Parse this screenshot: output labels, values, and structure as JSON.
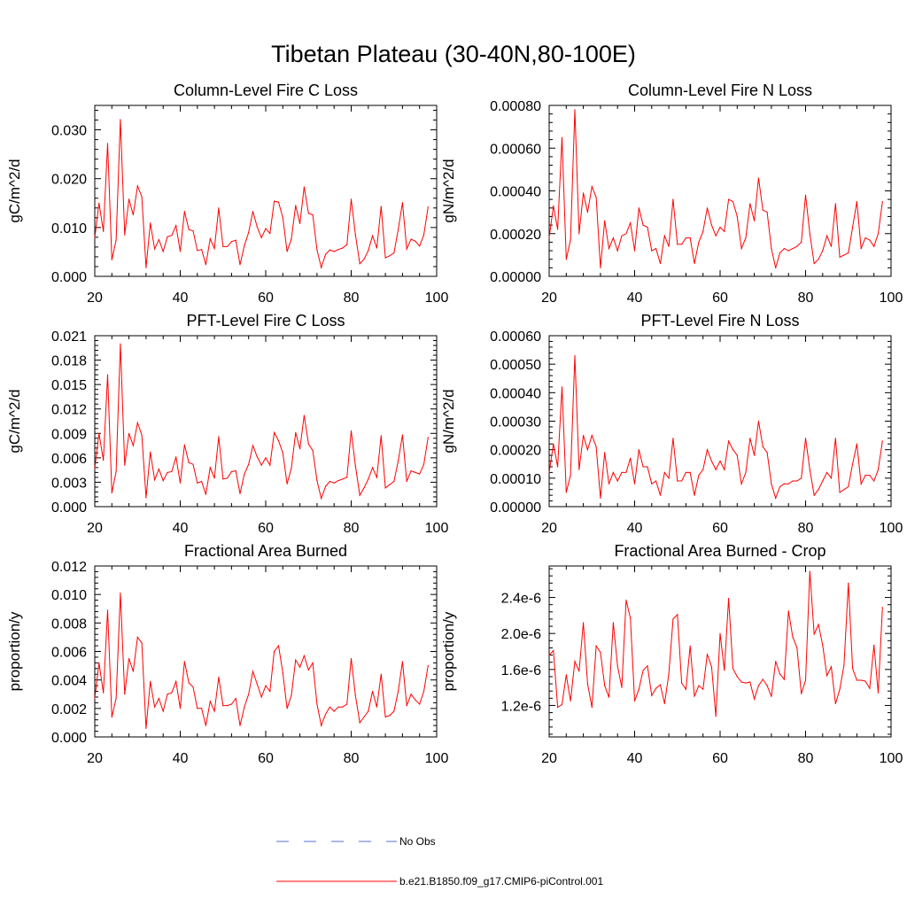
{
  "figure": {
    "title": "Tibetan Plateau (30-40N,80-100E)",
    "line_color": "#ff0000",
    "obs_color": "#5a6fd0"
  },
  "legend": {
    "entries": [
      {
        "label": "No Obs",
        "style": "dashed",
        "color": "#5a6fd0"
      },
      {
        "label": "b.e21.B1850.f09_g17.CMIP6-piControl.001",
        "style": "solid",
        "color": "#ff0000"
      }
    ]
  },
  "chart_data": [
    {
      "type": "line",
      "title": "Column-Level Fire C Loss",
      "ylabel": "gC/m^2/d",
      "xlim": [
        20,
        100
      ],
      "ylim": [
        0,
        0.035
      ],
      "xticks": [
        20,
        40,
        60,
        80,
        100
      ],
      "xtick_labels": [
        "20",
        "40",
        "60",
        "80",
        "100"
      ],
      "yticks": [
        0,
        0.01,
        0.02,
        0.03
      ],
      "ytick_labels": [
        "0.000",
        "0.010",
        "0.020",
        "0.030"
      ],
      "x": [
        20,
        21,
        22,
        23,
        24,
        25,
        26,
        27,
        28,
        29,
        30,
        31,
        32,
        33,
        34,
        35,
        36,
        37,
        38,
        39,
        40,
        41,
        42,
        43,
        44,
        45,
        46,
        47,
        48,
        49,
        50,
        51,
        52,
        53,
        54,
        55,
        56,
        57,
        58,
        59,
        60,
        61,
        62,
        63,
        64,
        65,
        66,
        67,
        68,
        69,
        70,
        71,
        72,
        73,
        74,
        75,
        76,
        77,
        78,
        79,
        80,
        81,
        82,
        83,
        84,
        85,
        86,
        87,
        88,
        89,
        90,
        91,
        92,
        93,
        94,
        95,
        96,
        97,
        98
      ],
      "values": [
        0.0079,
        0.015,
        0.0092,
        0.0272,
        0.0034,
        0.0074,
        0.0321,
        0.0085,
        0.0158,
        0.0126,
        0.0185,
        0.0163,
        0.0018,
        0.0109,
        0.0056,
        0.0075,
        0.0051,
        0.0081,
        0.0084,
        0.0104,
        0.0051,
        0.0133,
        0.0096,
        0.0093,
        0.0053,
        0.0055,
        0.0024,
        0.0077,
        0.0057,
        0.014,
        0.0061,
        0.0061,
        0.0071,
        0.0074,
        0.0024,
        0.0063,
        0.009,
        0.0133,
        0.0101,
        0.0079,
        0.0098,
        0.0088,
        0.0154,
        0.0152,
        0.012,
        0.0051,
        0.0076,
        0.0145,
        0.0108,
        0.0183,
        0.0129,
        0.0126,
        0.0054,
        0.0018,
        0.0045,
        0.0054,
        0.0051,
        0.0055,
        0.0058,
        0.0065,
        0.0158,
        0.0085,
        0.0026,
        0.0035,
        0.0053,
        0.0083,
        0.0058,
        0.0143,
        0.0038,
        0.0042,
        0.0048,
        0.0096,
        0.0151,
        0.0056,
        0.0076,
        0.0072,
        0.0062,
        0.0085,
        0.0142
      ]
    },
    {
      "type": "line",
      "title": "Column-Level Fire N Loss",
      "ylabel": "gN/m^2/d",
      "xlim": [
        20,
        100
      ],
      "ylim": [
        0,
        0.0008
      ],
      "xticks": [
        20,
        40,
        60,
        80,
        100
      ],
      "xtick_labels": [
        "20",
        "40",
        "60",
        "80",
        "100"
      ],
      "yticks": [
        0,
        0.0002,
        0.0004,
        0.0006,
        0.0008
      ],
      "ytick_labels": [
        "0.00000",
        "0.00020",
        "0.00040",
        "0.00060",
        "0.00080"
      ],
      "x": [
        20,
        21,
        22,
        23,
        24,
        25,
        26,
        27,
        28,
        29,
        30,
        31,
        32,
        33,
        34,
        35,
        36,
        37,
        38,
        39,
        40,
        41,
        42,
        43,
        44,
        45,
        46,
        47,
        48,
        49,
        50,
        51,
        52,
        53,
        54,
        55,
        56,
        57,
        58,
        59,
        60,
        61,
        62,
        63,
        64,
        65,
        66,
        67,
        68,
        69,
        70,
        71,
        72,
        73,
        74,
        75,
        76,
        77,
        78,
        79,
        80,
        81,
        82,
        83,
        84,
        85,
        86,
        87,
        88,
        89,
        90,
        91,
        92,
        93,
        94,
        95,
        96,
        97,
        98
      ],
      "values": [
        0.00018,
        0.00033,
        0.00022,
        0.00065,
        8e-05,
        0.00017,
        0.00078,
        0.0002,
        0.00039,
        0.0003,
        0.00042,
        0.00037,
        4e-05,
        0.00026,
        0.00013,
        0.00018,
        0.00012,
        0.00019,
        0.0002,
        0.00025,
        0.00012,
        0.00032,
        0.00024,
        0.00023,
        0.00012,
        0.00013,
        6e-05,
        0.00019,
        0.00014,
        0.00036,
        0.00015,
        0.00015,
        0.00018,
        0.00018,
        6e-05,
        0.00016,
        0.00021,
        0.00032,
        0.00024,
        0.00019,
        0.00023,
        0.00021,
        0.00036,
        0.00035,
        0.00028,
        0.00013,
        0.00018,
        0.00034,
        0.00026,
        0.00046,
        0.00031,
        0.0003,
        0.00013,
        4e-05,
        0.00011,
        0.00013,
        0.00012,
        0.00013,
        0.00014,
        0.00016,
        0.00038,
        0.0002,
        6e-05,
        8e-05,
        0.00012,
        0.00019,
        0.00014,
        0.00034,
        9e-05,
        0.0001,
        0.00011,
        0.00023,
        0.00035,
        0.00013,
        0.00018,
        0.00017,
        0.00014,
        0.0002,
        0.00035
      ]
    },
    {
      "type": "line",
      "title": "PFT-Level Fire C Loss",
      "ylabel": "gC/m^2/d",
      "xlim": [
        20,
        100
      ],
      "ylim": [
        0,
        0.021
      ],
      "xticks": [
        20,
        40,
        60,
        80,
        100
      ],
      "xtick_labels": [
        "20",
        "40",
        "60",
        "80",
        "100"
      ],
      "yticks": [
        0,
        0.003,
        0.006,
        0.009,
        0.012,
        0.015,
        0.018,
        0.021
      ],
      "ytick_labels": [
        "0.000",
        "0.003",
        "0.006",
        "0.009",
        "0.012",
        "0.015",
        "0.018",
        "0.021"
      ],
      "x": [
        20,
        21,
        22,
        23,
        24,
        25,
        26,
        27,
        28,
        29,
        30,
        31,
        32,
        33,
        34,
        35,
        36,
        37,
        38,
        39,
        40,
        41,
        42,
        43,
        44,
        45,
        46,
        47,
        48,
        49,
        50,
        51,
        52,
        53,
        54,
        55,
        56,
        57,
        58,
        59,
        60,
        61,
        62,
        63,
        64,
        65,
        66,
        67,
        68,
        69,
        70,
        71,
        72,
        73,
        74,
        75,
        76,
        77,
        78,
        79,
        80,
        81,
        82,
        83,
        84,
        85,
        86,
        87,
        88,
        89,
        90,
        91,
        92,
        93,
        94,
        95,
        96,
        97,
        98
      ],
      "values": [
        0.0047,
        0.009,
        0.0057,
        0.0162,
        0.0017,
        0.0043,
        0.02,
        0.0051,
        0.009,
        0.0075,
        0.0103,
        0.0088,
        0.0011,
        0.0067,
        0.0033,
        0.0046,
        0.0032,
        0.0042,
        0.0043,
        0.0061,
        0.0029,
        0.0076,
        0.0054,
        0.0052,
        0.0029,
        0.0031,
        0.0015,
        0.0048,
        0.0035,
        0.0086,
        0.0034,
        0.0035,
        0.0043,
        0.0044,
        0.0016,
        0.004,
        0.0052,
        0.0075,
        0.0061,
        0.0051,
        0.006,
        0.0051,
        0.0091,
        0.0081,
        0.0066,
        0.0028,
        0.0047,
        0.0091,
        0.0071,
        0.0112,
        0.0077,
        0.0069,
        0.0032,
        0.001,
        0.0025,
        0.0031,
        0.0029,
        0.0032,
        0.0034,
        0.0036,
        0.0093,
        0.005,
        0.0014,
        0.0023,
        0.0034,
        0.0048,
        0.0036,
        0.0087,
        0.0023,
        0.0027,
        0.0031,
        0.0056,
        0.0088,
        0.0031,
        0.0044,
        0.0042,
        0.004,
        0.0052,
        0.0085
      ]
    },
    {
      "type": "line",
      "title": "PFT-Level Fire N Loss",
      "ylabel": "gN/m^2/d",
      "xlim": [
        20,
        100
      ],
      "ylim": [
        0,
        0.0006
      ],
      "xticks": [
        20,
        40,
        60,
        80,
        100
      ],
      "xtick_labels": [
        "20",
        "40",
        "60",
        "80",
        "100"
      ],
      "yticks": [
        0,
        0.0001,
        0.0002,
        0.0003,
        0.0004,
        0.0005,
        0.0006
      ],
      "ytick_labels": [
        "0.00000",
        "0.00010",
        "0.00020",
        "0.00030",
        "0.00040",
        "0.00050",
        "0.00060"
      ],
      "x": [
        20,
        21,
        22,
        23,
        24,
        25,
        26,
        27,
        28,
        29,
        30,
        31,
        32,
        33,
        34,
        35,
        36,
        37,
        38,
        39,
        40,
        41,
        42,
        43,
        44,
        45,
        46,
        47,
        48,
        49,
        50,
        51,
        52,
        53,
        54,
        55,
        56,
        57,
        58,
        59,
        60,
        61,
        62,
        63,
        64,
        65,
        66,
        67,
        68,
        69,
        70,
        71,
        72,
        73,
        74,
        75,
        76,
        77,
        78,
        79,
        80,
        81,
        82,
        83,
        84,
        85,
        86,
        87,
        88,
        89,
        90,
        91,
        92,
        93,
        94,
        95,
        96,
        97,
        98
      ],
      "values": [
        0.00012,
        0.00022,
        0.00014,
        0.00042,
        5e-05,
        0.00011,
        0.00053,
        0.00013,
        0.00025,
        0.0002,
        0.00025,
        0.00021,
        3e-05,
        0.00019,
        8e-05,
        0.00012,
        9e-05,
        0.00012,
        0.00012,
        0.00017,
        8e-05,
        0.0002,
        0.00014,
        0.00014,
        8e-05,
        9e-05,
        4e-05,
        0.00012,
        0.0001,
        0.00024,
        9e-05,
        9e-05,
        0.00012,
        0.00012,
        4e-05,
        0.00011,
        0.00013,
        0.0002,
        0.00016,
        0.00013,
        0.00016,
        0.00013,
        0.00023,
        0.0002,
        0.00018,
        8e-05,
        0.00012,
        0.00024,
        0.00018,
        0.0003,
        0.00021,
        0.00019,
        8e-05,
        3e-05,
        7e-05,
        8e-05,
        8e-05,
        9e-05,
        9e-05,
        0.0001,
        0.00024,
        0.00013,
        4e-05,
        6e-05,
        9e-05,
        0.00012,
        0.0001,
        0.00024,
        5e-05,
        6e-05,
        7e-05,
        0.00015,
        0.00022,
        8e-05,
        0.00011,
        0.00011,
        9e-05,
        0.00013,
        0.00023
      ]
    },
    {
      "type": "line",
      "title": "Fractional Area Burned",
      "ylabel": "proportion/y",
      "xlim": [
        20,
        100
      ],
      "ylim": [
        0,
        0.012
      ],
      "xticks": [
        20,
        40,
        60,
        80,
        100
      ],
      "xtick_labels": [
        "20",
        "40",
        "60",
        "80",
        "100"
      ],
      "yticks": [
        0,
        0.002,
        0.004,
        0.006,
        0.008,
        0.01,
        0.012
      ],
      "ytick_labels": [
        "0.000",
        "0.002",
        "0.004",
        "0.006",
        "0.008",
        "0.010",
        "0.012"
      ],
      "x": [
        20,
        21,
        22,
        23,
        24,
        25,
        26,
        27,
        28,
        29,
        30,
        31,
        32,
        33,
        34,
        35,
        36,
        37,
        38,
        39,
        40,
        41,
        42,
        43,
        44,
        45,
        46,
        47,
        48,
        49,
        50,
        51,
        52,
        53,
        54,
        55,
        56,
        57,
        58,
        59,
        60,
        61,
        62,
        63,
        64,
        65,
        66,
        67,
        68,
        69,
        70,
        71,
        72,
        73,
        74,
        75,
        76,
        77,
        78,
        79,
        80,
        81,
        82,
        83,
        84,
        85,
        86,
        87,
        88,
        89,
        90,
        91,
        92,
        93,
        94,
        95,
        96,
        97,
        98
      ],
      "values": [
        0.0027,
        0.0052,
        0.0031,
        0.0089,
        0.0014,
        0.0027,
        0.0101,
        0.003,
        0.0055,
        0.0046,
        0.007,
        0.0066,
        0.0006,
        0.0039,
        0.0021,
        0.0027,
        0.0018,
        0.003,
        0.0031,
        0.0039,
        0.002,
        0.0053,
        0.0038,
        0.0035,
        0.002,
        0.002,
        0.0008,
        0.0025,
        0.0018,
        0.0042,
        0.0022,
        0.0022,
        0.0023,
        0.0027,
        0.0008,
        0.0021,
        0.003,
        0.0046,
        0.0037,
        0.0028,
        0.0036,
        0.0032,
        0.006,
        0.0064,
        0.0045,
        0.002,
        0.0029,
        0.0054,
        0.0049,
        0.0057,
        0.0047,
        0.0052,
        0.0023,
        0.0008,
        0.0016,
        0.0021,
        0.0018,
        0.0021,
        0.0021,
        0.0023,
        0.0055,
        0.0029,
        0.001,
        0.0014,
        0.0018,
        0.0032,
        0.0021,
        0.0044,
        0.0014,
        0.0015,
        0.0018,
        0.0032,
        0.0053,
        0.0022,
        0.003,
        0.0026,
        0.0023,
        0.0032,
        0.005
      ]
    },
    {
      "type": "line",
      "title": "Fractional Area Burned - Crop",
      "ylabel": "proportion/y",
      "xlim": [
        20,
        100
      ],
      "ylim": [
        8.5e-07,
        2.75e-06
      ],
      "xticks": [
        20,
        40,
        60,
        80,
        100
      ],
      "xtick_labels": [
        "20",
        "40",
        "60",
        "80",
        "100"
      ],
      "yticks": [
        1.2e-06,
        1.6e-06,
        2e-06,
        2.4e-06
      ],
      "ytick_labels": [
        "1.2e-6",
        "1.6e-6",
        "2.0e-6",
        "2.4e-6"
      ],
      "x": [
        20,
        21,
        22,
        23,
        24,
        25,
        26,
        27,
        28,
        29,
        30,
        31,
        32,
        33,
        34,
        35,
        36,
        37,
        38,
        39,
        40,
        41,
        42,
        43,
        44,
        45,
        46,
        47,
        48,
        49,
        50,
        51,
        52,
        53,
        54,
        55,
        56,
        57,
        58,
        59,
        60,
        61,
        62,
        63,
        64,
        65,
        66,
        67,
        68,
        69,
        70,
        71,
        72,
        73,
        74,
        75,
        76,
        77,
        78,
        79,
        80,
        81,
        82,
        83,
        84,
        85,
        86,
        87,
        88,
        89,
        90,
        91,
        92,
        93,
        94,
        95,
        96,
        97,
        98
      ],
      "values": [
        1.76e-06,
        1.81e-06,
        1.18e-06,
        1.21e-06,
        1.54e-06,
        1.25e-06,
        1.69e-06,
        1.58e-06,
        2.12e-06,
        1.44e-06,
        1.18e-06,
        1.86e-06,
        1.79e-06,
        1.42e-06,
        1.29e-06,
        2.12e-06,
        1.64e-06,
        1.4e-06,
        2.37e-06,
        2.17e-06,
        1.25e-06,
        1.38e-06,
        1.59e-06,
        1.64e-06,
        1.31e-06,
        1.39e-06,
        1.43e-06,
        1.22e-06,
        1.55e-06,
        2.16e-06,
        2.21e-06,
        1.45e-06,
        1.38e-06,
        1.86e-06,
        1.3e-06,
        1.42e-06,
        1.38e-06,
        1.77e-06,
        1.63e-06,
        1.08e-06,
        2e-06,
        1.59e-06,
        2.39e-06,
        1.61e-06,
        1.52e-06,
        1.46e-06,
        1.45e-06,
        1.46e-06,
        1.27e-06,
        1.42e-06,
        1.49e-06,
        1.42e-06,
        1.3e-06,
        1.69e-06,
        1.55e-06,
        1.49e-06,
        2.25e-06,
        1.96e-06,
        1.84e-06,
        1.33e-06,
        1.48e-06,
        2.69e-06,
        1.99e-06,
        2.1e-06,
        1.87e-06,
        1.53e-06,
        1.63e-06,
        1.22e-06,
        1.38e-06,
        1.65e-06,
        2.56e-06,
        1.61e-06,
        1.48e-06,
        1.48e-06,
        1.47e-06,
        1.39e-06,
        1.87e-06,
        1.34e-06,
        2.29e-06
      ]
    }
  ]
}
